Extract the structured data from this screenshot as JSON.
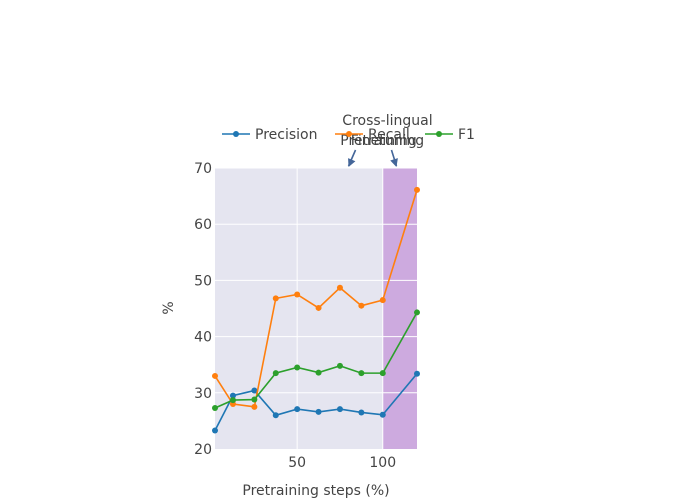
{
  "chart_data": {
    "type": "line",
    "xlabel": "Pretraining steps (%)",
    "ylabel": "%",
    "xlim": [
      2,
      120
    ],
    "ylim": [
      20,
      70
    ],
    "x_ticks": [
      50,
      100
    ],
    "y_ticks": [
      20,
      30,
      40,
      50,
      60,
      70
    ],
    "grid": true,
    "legend_position": "top",
    "highlight_region": {
      "x0": 100,
      "x1": 120,
      "color": "#c9a0dc"
    },
    "annotations": [
      {
        "lines": [
          "Pretraining"
        ],
        "x": 80,
        "y": 70
      },
      {
        "lines": [
          "Cross-lingual",
          "Finetuning"
        ],
        "x": 108,
        "y": 70
      }
    ],
    "series": [
      {
        "name": "Precision",
        "color": "#1f77b4",
        "x": [
          2,
          12.5,
          25,
          37.5,
          50,
          62.5,
          75,
          87.5,
          100
        ],
        "y": [
          23.3,
          29.5,
          30.4,
          26.0,
          27.1,
          26.6,
          27.1,
          26.5,
          26.1
        ],
        "extension": {
          "x": [
            100,
            120
          ],
          "y": [
            26.1,
            33.4
          ]
        }
      },
      {
        "name": "Recall",
        "color": "#ff7f0e",
        "x": [
          2,
          12.5,
          25,
          37.5,
          50,
          62.5,
          75,
          87.5,
          100
        ],
        "y": [
          33.0,
          28.0,
          27.5,
          46.8,
          47.5,
          45.1,
          48.7,
          45.5,
          46.5
        ],
        "extension": {
          "x": [
            100,
            120
          ],
          "y": [
            46.5,
            66.1
          ]
        }
      },
      {
        "name": "F1",
        "color": "#2ca02c",
        "x": [
          2,
          12.5,
          25,
          37.5,
          50,
          62.5,
          75,
          87.5,
          100
        ],
        "y": [
          27.3,
          28.7,
          28.8,
          33.5,
          34.5,
          33.6,
          34.8,
          33.5,
          33.5
        ],
        "extension": {
          "x": [
            100,
            120
          ],
          "y": [
            33.5,
            44.3
          ]
        }
      }
    ]
  }
}
